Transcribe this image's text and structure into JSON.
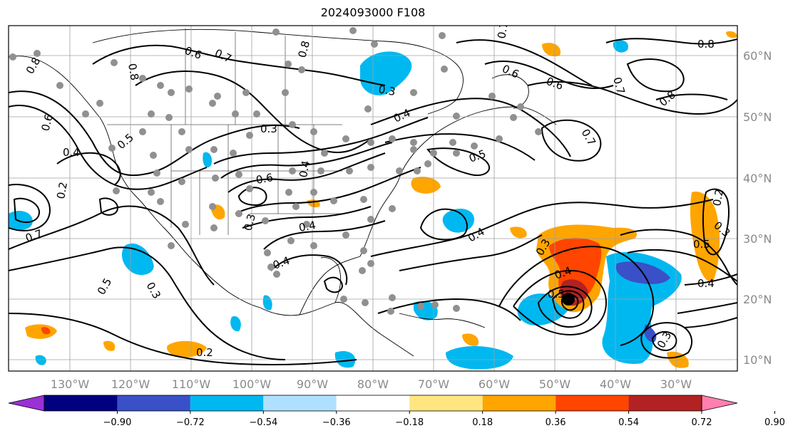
{
  "title": "2024093000 F108",
  "lat_labels": [
    "60°N",
    "50°N",
    "40°N",
    "30°N",
    "20°N",
    "10°N"
  ],
  "lon_labels": [
    "130°W",
    "120°W",
    "110°W",
    "100°W",
    "90°W",
    "80°W",
    "70°W",
    "60°W",
    "50°W",
    "40°W",
    "30°W"
  ],
  "colorbar": {
    "ticks": [
      "−0.90",
      "−0.72",
      "−0.54",
      "−0.36",
      "−0.18",
      "0.18",
      "0.36",
      "0.54",
      "0.72",
      "0.90"
    ],
    "colors": [
      "#9b30d6",
      "#000080",
      "#3a50c8",
      "#00b8f0",
      "#b0e0ff",
      "#ffffff",
      "#ffe680",
      "#ffa500",
      "#ff4500",
      "#b22222",
      "#ff80b0"
    ]
  },
  "contour_labels": [
    "0.8",
    "0.6",
    "0.7",
    "0.8",
    "0.6",
    "0.7",
    "0.6",
    "0.7",
    "0.8",
    "0.4",
    "0.3",
    "0.4",
    "0.5",
    "0.7",
    "0.4",
    "0.6",
    "0.4",
    "0.2",
    "0.3",
    "0.5",
    "0.4",
    "0.8",
    "0.7",
    "0.5",
    "0.3",
    "0.2",
    "0.4",
    "0.3",
    "0.6",
    "0.4",
    "0.5",
    "0.4",
    "0.3",
    "0.3",
    "0.5",
    "0.2",
    "0.3",
    "0.8"
  ],
  "storm_marker": "tropical-cyclone-center"
}
